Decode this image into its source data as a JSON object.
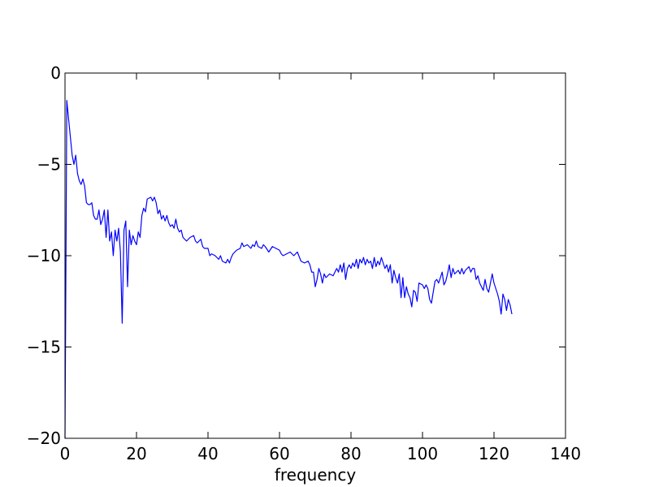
{
  "chart_data": {
    "type": "line",
    "title": "",
    "xlabel": "frequency",
    "ylabel": "",
    "xlim": [
      0,
      140
    ],
    "ylim": [
      -20,
      0
    ],
    "x_ticks": [
      0,
      20,
      40,
      60,
      80,
      100,
      120,
      140
    ],
    "x_tick_labels": [
      "0",
      "20",
      "40",
      "60",
      "80",
      "100",
      "120",
      "140"
    ],
    "y_ticks": [
      -20,
      -15,
      -10,
      -5,
      0
    ],
    "y_tick_labels": [
      "−20",
      "−15",
      "−10",
      "−5",
      "0"
    ],
    "grid": false,
    "line_color": "#0000ff",
    "series": [
      {
        "name": "",
        "points": [
          [
            0.0,
            -20.0
          ],
          [
            0.5,
            -1.5
          ],
          [
            1.0,
            -2.5
          ],
          [
            1.5,
            -3.5
          ],
          [
            2.0,
            -4.5
          ],
          [
            2.5,
            -5.0
          ],
          [
            3.0,
            -4.5
          ],
          [
            3.5,
            -5.5
          ],
          [
            4.0,
            -5.9
          ],
          [
            4.5,
            -6.1
          ],
          [
            5.0,
            -5.8
          ],
          [
            5.5,
            -6.2
          ],
          [
            6.0,
            -7.1
          ],
          [
            6.5,
            -7.2
          ],
          [
            7.0,
            -7.2
          ],
          [
            7.5,
            -7.1
          ],
          [
            8.0,
            -7.8
          ],
          [
            8.5,
            -8.0
          ],
          [
            9.0,
            -8.0
          ],
          [
            9.5,
            -7.5
          ],
          [
            10.0,
            -8.3
          ],
          [
            10.5,
            -8.0
          ],
          [
            11.0,
            -7.5
          ],
          [
            11.5,
            -9.0
          ],
          [
            12.0,
            -7.5
          ],
          [
            12.5,
            -9.2
          ],
          [
            13.0,
            -8.7
          ],
          [
            13.5,
            -10.0
          ],
          [
            14.0,
            -8.6
          ],
          [
            14.5,
            -9.2
          ],
          [
            15.0,
            -8.5
          ],
          [
            15.5,
            -9.8
          ],
          [
            16.0,
            -13.7
          ],
          [
            16.5,
            -8.6
          ],
          [
            17.0,
            -8.1
          ],
          [
            17.5,
            -11.7
          ],
          [
            18.0,
            -8.6
          ],
          [
            18.5,
            -9.4
          ],
          [
            19.0,
            -8.9
          ],
          [
            19.5,
            -9.2
          ],
          [
            20.0,
            -9.4
          ],
          [
            20.5,
            -8.7
          ],
          [
            21.0,
            -9.0
          ],
          [
            21.5,
            -7.8
          ],
          [
            22.0,
            -7.4
          ],
          [
            22.5,
            -7.6
          ],
          [
            23.0,
            -6.9
          ],
          [
            24.0,
            -6.8
          ],
          [
            24.5,
            -7.0
          ],
          [
            25.0,
            -6.8
          ],
          [
            25.5,
            -7.1
          ],
          [
            26.0,
            -7.7
          ],
          [
            26.5,
            -7.5
          ],
          [
            27.0,
            -8.0
          ],
          [
            27.5,
            -7.8
          ],
          [
            28.0,
            -8.1
          ],
          [
            28.5,
            -7.8
          ],
          [
            29.0,
            -8.2
          ],
          [
            29.5,
            -8.4
          ],
          [
            30.0,
            -8.3
          ],
          [
            30.5,
            -8.5
          ],
          [
            31.0,
            -8.0
          ],
          [
            31.5,
            -8.5
          ],
          [
            32.0,
            -8.7
          ],
          [
            32.5,
            -8.6
          ],
          [
            33.0,
            -9.0
          ],
          [
            34.0,
            -9.2
          ],
          [
            35.0,
            -9.0
          ],
          [
            36.0,
            -8.9
          ],
          [
            36.5,
            -9.2
          ],
          [
            37.0,
            -9.3
          ],
          [
            38.0,
            -9.1
          ],
          [
            38.5,
            -9.5
          ],
          [
            39.0,
            -9.6
          ],
          [
            40.0,
            -9.6
          ],
          [
            40.5,
            -10.0
          ],
          [
            41.0,
            -9.9
          ],
          [
            42.0,
            -10.0
          ],
          [
            43.0,
            -10.2
          ],
          [
            43.5,
            -10.0
          ],
          [
            44.0,
            -10.3
          ],
          [
            45.0,
            -10.4
          ],
          [
            45.5,
            -10.2
          ],
          [
            46.0,
            -10.4
          ],
          [
            46.5,
            -10.1
          ],
          [
            47.0,
            -9.9
          ],
          [
            48.0,
            -9.7
          ],
          [
            49.0,
            -9.6
          ],
          [
            49.5,
            -9.3
          ],
          [
            50.0,
            -9.5
          ],
          [
            51.0,
            -9.4
          ],
          [
            52.0,
            -9.6
          ],
          [
            52.5,
            -9.4
          ],
          [
            53.0,
            -9.5
          ],
          [
            53.5,
            -9.2
          ],
          [
            54.0,
            -9.5
          ],
          [
            55.0,
            -9.6
          ],
          [
            55.5,
            -9.4
          ],
          [
            56.0,
            -9.5
          ],
          [
            57.0,
            -9.8
          ],
          [
            58.0,
            -9.5
          ],
          [
            59.0,
            -9.6
          ],
          [
            60.0,
            -9.7
          ],
          [
            60.5,
            -9.9
          ],
          [
            61.0,
            -10.0
          ],
          [
            62.0,
            -9.9
          ],
          [
            63.0,
            -9.8
          ],
          [
            64.0,
            -10.0
          ],
          [
            65.0,
            -9.8
          ],
          [
            66.0,
            -10.3
          ],
          [
            67.0,
            -10.4
          ],
          [
            68.0,
            -10.3
          ],
          [
            68.5,
            -10.5
          ],
          [
            69.0,
            -10.9
          ],
          [
            69.5,
            -10.9
          ],
          [
            70.0,
            -11.7
          ],
          [
            70.5,
            -11.3
          ],
          [
            71.0,
            -10.7
          ],
          [
            71.5,
            -11.0
          ],
          [
            72.0,
            -11.5
          ],
          [
            72.5,
            -11.0
          ],
          [
            73.0,
            -11.2
          ],
          [
            74.0,
            -11.0
          ],
          [
            75.0,
            -11.1
          ],
          [
            75.5,
            -10.9
          ],
          [
            76.0,
            -10.7
          ],
          [
            76.5,
            -10.9
          ],
          [
            77.0,
            -10.5
          ],
          [
            77.5,
            -10.9
          ],
          [
            78.0,
            -10.4
          ],
          [
            78.5,
            -11.3
          ],
          [
            79.0,
            -10.7
          ],
          [
            79.5,
            -10.5
          ],
          [
            80.0,
            -10.7
          ],
          [
            80.5,
            -10.4
          ],
          [
            81.0,
            -10.6
          ],
          [
            81.5,
            -10.2
          ],
          [
            82.0,
            -10.7
          ],
          [
            82.5,
            -10.2
          ],
          [
            83.0,
            -10.4
          ],
          [
            83.5,
            -10.1
          ],
          [
            84.0,
            -10.5
          ],
          [
            84.5,
            -10.2
          ],
          [
            85.0,
            -10.4
          ],
          [
            85.5,
            -10.3
          ],
          [
            86.0,
            -10.7
          ],
          [
            86.5,
            -10.1
          ],
          [
            87.0,
            -10.6
          ],
          [
            87.5,
            -10.3
          ],
          [
            88.0,
            -10.5
          ],
          [
            88.5,
            -10.1
          ],
          [
            89.0,
            -10.4
          ],
          [
            89.5,
            -10.7
          ],
          [
            90.0,
            -10.5
          ],
          [
            90.5,
            -10.9
          ],
          [
            91.0,
            -10.5
          ],
          [
            91.5,
            -11.5
          ],
          [
            92.0,
            -10.8
          ],
          [
            92.5,
            -11.2
          ],
          [
            93.0,
            -11.5
          ],
          [
            93.5,
            -11.0
          ],
          [
            94.0,
            -12.3
          ],
          [
            94.5,
            -11.2
          ],
          [
            95.0,
            -12.3
          ],
          [
            95.5,
            -11.7
          ],
          [
            96.0,
            -12.1
          ],
          [
            96.5,
            -12.3
          ],
          [
            97.0,
            -12.8
          ],
          [
            97.5,
            -11.9
          ],
          [
            98.0,
            -12.0
          ],
          [
            98.5,
            -12.5
          ],
          [
            99.0,
            -11.5
          ],
          [
            100.0,
            -11.6
          ],
          [
            100.5,
            -11.8
          ],
          [
            101.0,
            -11.6
          ],
          [
            101.5,
            -11.8
          ],
          [
            102.0,
            -12.4
          ],
          [
            102.5,
            -12.6
          ],
          [
            103.0,
            -12.0
          ],
          [
            103.5,
            -11.4
          ],
          [
            104.0,
            -11.3
          ],
          [
            104.5,
            -11.5
          ],
          [
            105.0,
            -11.2
          ],
          [
            105.5,
            -10.9
          ],
          [
            106.0,
            -11.6
          ],
          [
            106.5,
            -11.4
          ],
          [
            107.0,
            -11.0
          ],
          [
            107.5,
            -10.5
          ],
          [
            108.0,
            -11.2
          ],
          [
            108.5,
            -10.7
          ],
          [
            109.0,
            -11.0
          ],
          [
            110.0,
            -10.8
          ],
          [
            110.5,
            -11.0
          ],
          [
            111.0,
            -10.7
          ],
          [
            111.5,
            -11.0
          ],
          [
            112.0,
            -10.8
          ],
          [
            113.0,
            -10.6
          ],
          [
            113.5,
            -10.9
          ],
          [
            114.0,
            -10.7
          ],
          [
            114.5,
            -10.7
          ],
          [
            115.0,
            -11.3
          ],
          [
            115.5,
            -11.1
          ],
          [
            116.0,
            -11.5
          ],
          [
            116.5,
            -11.7
          ],
          [
            117.0,
            -11.9
          ],
          [
            117.5,
            -11.3
          ],
          [
            118.0,
            -11.8
          ],
          [
            118.5,
            -12.0
          ],
          [
            119.0,
            -11.5
          ],
          [
            119.5,
            -11.0
          ],
          [
            120.0,
            -11.5
          ],
          [
            120.5,
            -11.8
          ],
          [
            121.0,
            -12.1
          ],
          [
            121.5,
            -12.5
          ],
          [
            122.0,
            -13.2
          ],
          [
            122.5,
            -12.1
          ],
          [
            123.0,
            -12.4
          ],
          [
            123.5,
            -13.0
          ],
          [
            124.0,
            -12.4
          ],
          [
            124.5,
            -12.7
          ],
          [
            125.0,
            -13.2
          ]
        ]
      }
    ]
  }
}
